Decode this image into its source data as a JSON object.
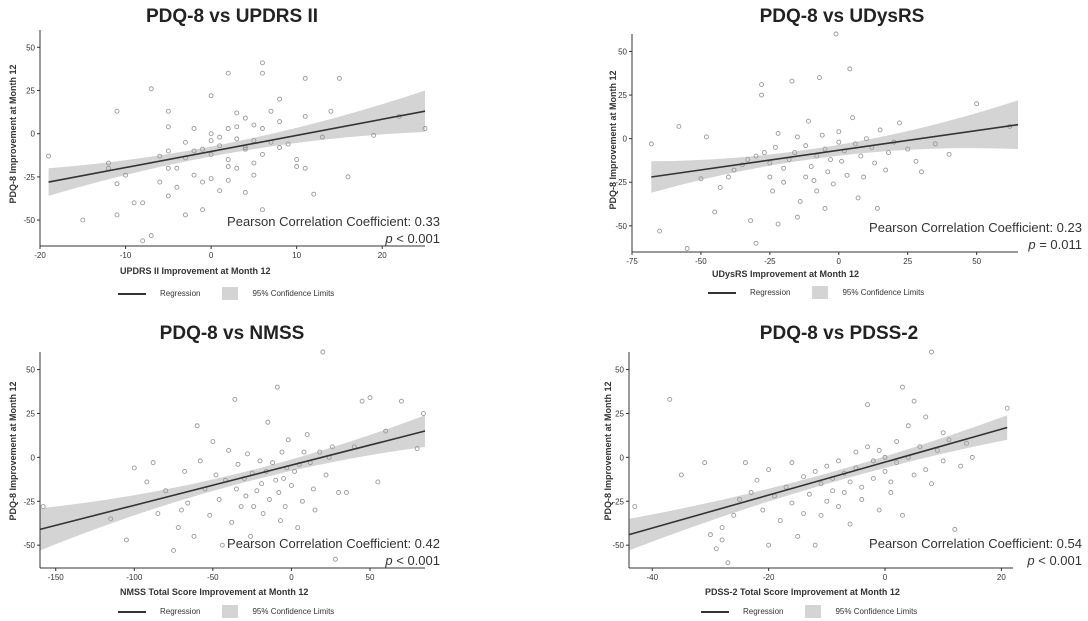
{
  "legend": {
    "regression_label": "Regression",
    "ci_label": "95% Confidence Limits"
  },
  "colors": {
    "line": "#333333",
    "band": "#d4d4d4",
    "points": "#9a9a9a"
  },
  "chart_data": [
    {
      "type": "scatter",
      "title": "PDQ-8 vs UPDRS II",
      "xlabel": "UPDRS II Improvement at Month 12",
      "ylabel": "PDQ-8 Improvement at Month 12",
      "xlim": [
        -20,
        25
      ],
      "ylim": [
        -65,
        60
      ],
      "xticks": [
        -20,
        -10,
        0,
        10,
        20
      ],
      "yticks": [
        -50,
        -25,
        0,
        25,
        50
      ],
      "regression": {
        "x0": -19,
        "y0": -28,
        "x1": 25,
        "y1": 13
      },
      "band_halfwidth": {
        "left": 8,
        "center": 3,
        "right": 12
      },
      "correlation_text": "Pearson Correlation Coefficient: 0.33",
      "p_label": "p",
      "p_text": "< 0.001",
      "points": [
        [
          -19,
          -13
        ],
        [
          -15,
          -50
        ],
        [
          -12,
          -20
        ],
        [
          -12,
          -17
        ],
        [
          -11,
          -29
        ],
        [
          -11,
          -47
        ],
        [
          -11,
          13
        ],
        [
          -10,
          -24
        ],
        [
          -9,
          -40
        ],
        [
          -8,
          -40
        ],
        [
          -8,
          -62
        ],
        [
          -7,
          -59
        ],
        [
          -7,
          26
        ],
        [
          -6,
          -28
        ],
        [
          -6,
          -13
        ],
        [
          -5,
          13
        ],
        [
          -5,
          4
        ],
        [
          -5,
          -10
        ],
        [
          -5,
          -20
        ],
        [
          -5,
          -36
        ],
        [
          -4,
          -20
        ],
        [
          -4,
          -31
        ],
        [
          -3,
          -47
        ],
        [
          -3,
          -14
        ],
        [
          -3,
          -5
        ],
        [
          -2,
          3
        ],
        [
          -2,
          -10
        ],
        [
          -2,
          -24
        ],
        [
          -1,
          -9
        ],
        [
          -1,
          -28
        ],
        [
          -1,
          -44
        ],
        [
          0,
          22
        ],
        [
          0,
          0
        ],
        [
          0,
          -4
        ],
        [
          0,
          -12
        ],
        [
          0,
          -26
        ],
        [
          1,
          -33
        ],
        [
          1,
          -7
        ],
        [
          1,
          -2
        ],
        [
          2,
          35
        ],
        [
          2,
          3
        ],
        [
          2,
          -15
        ],
        [
          2,
          -19
        ],
        [
          2,
          -27
        ],
        [
          3,
          -20
        ],
        [
          3,
          4
        ],
        [
          3,
          -3
        ],
        [
          3,
          12
        ],
        [
          4,
          -9
        ],
        [
          4,
          9
        ],
        [
          4,
          -34
        ],
        [
          4,
          -8
        ],
        [
          5,
          -4
        ],
        [
          5,
          -17
        ],
        [
          5,
          -24
        ],
        [
          5,
          5
        ],
        [
          6,
          35
        ],
        [
          6,
          41
        ],
        [
          6,
          3
        ],
        [
          6,
          -12
        ],
        [
          6,
          -44
        ],
        [
          7,
          -5
        ],
        [
          7,
          13
        ],
        [
          8,
          -8
        ],
        [
          8,
          20
        ],
        [
          8,
          7
        ],
        [
          9,
          -6
        ],
        [
          10,
          -15
        ],
        [
          10,
          -19
        ],
        [
          11,
          32
        ],
        [
          11,
          10
        ],
        [
          11,
          -20
        ],
        [
          12,
          -35
        ],
        [
          13,
          -2
        ],
        [
          14,
          13
        ],
        [
          15,
          32
        ],
        [
          16,
          -25
        ],
        [
          19,
          -1
        ],
        [
          22,
          10
        ],
        [
          25,
          3
        ]
      ]
    },
    {
      "type": "scatter",
      "title": "PDQ-8 vs UDysRS",
      "xlabel": "UDysRS Improvement at Month 12",
      "ylabel": "PDQ-8 Improvement at Month 12",
      "xlim": [
        -75,
        65
      ],
      "ylim": [
        -65,
        60
      ],
      "xticks": [
        -75,
        -50,
        -25,
        0,
        25,
        50
      ],
      "yticks": [
        -50,
        -25,
        0,
        25,
        50
      ],
      "regression": {
        "x0": -68,
        "y0": -22,
        "x1": 65,
        "y1": 8
      },
      "band_halfwidth": {
        "left": 9,
        "center": 3,
        "right": 14
      },
      "correlation_text": "Pearson Correlation Coefficient: 0.23",
      "p_label": "p",
      "p_text": "= 0.011",
      "points": [
        [
          -68,
          -3
        ],
        [
          -65,
          -53
        ],
        [
          -58,
          7
        ],
        [
          -55,
          -63
        ],
        [
          -50,
          -23
        ],
        [
          -48,
          1
        ],
        [
          -45,
          -42
        ],
        [
          -43,
          -28
        ],
        [
          -40,
          -22
        ],
        [
          -38,
          -18
        ],
        [
          -35,
          -15
        ],
        [
          -33,
          -12
        ],
        [
          -32,
          -47
        ],
        [
          -30,
          -60
        ],
        [
          -30,
          -10
        ],
        [
          -28,
          31
        ],
        [
          -28,
          25
        ],
        [
          -27,
          -8
        ],
        [
          -25,
          -22
        ],
        [
          -25,
          -14
        ],
        [
          -24,
          -30
        ],
        [
          -23,
          -5
        ],
        [
          -22,
          -49
        ],
        [
          -22,
          3
        ],
        [
          -20,
          -17
        ],
        [
          -20,
          -25
        ],
        [
          -18,
          -12
        ],
        [
          -17,
          33
        ],
        [
          -16,
          -8
        ],
        [
          -15,
          -45
        ],
        [
          -15,
          1
        ],
        [
          -14,
          -36
        ],
        [
          -12,
          -22
        ],
        [
          -12,
          -4
        ],
        [
          -11,
          10
        ],
        [
          -10,
          -16
        ],
        [
          -9,
          -24
        ],
        [
          -8,
          -10
        ],
        [
          -8,
          -30
        ],
        [
          -7,
          35
        ],
        [
          -6,
          2
        ],
        [
          -5,
          -40
        ],
        [
          -5,
          -6
        ],
        [
          -4,
          -19
        ],
        [
          -3,
          -12
        ],
        [
          -2,
          -26
        ],
        [
          -1,
          60
        ],
        [
          0,
          4
        ],
        [
          0,
          -2
        ],
        [
          1,
          -13
        ],
        [
          2,
          -7
        ],
        [
          3,
          -21
        ],
        [
          4,
          40
        ],
        [
          5,
          12
        ],
        [
          6,
          -3
        ],
        [
          7,
          -34
        ],
        [
          8,
          -10
        ],
        [
          9,
          -22
        ],
        [
          10,
          0
        ],
        [
          12,
          -5
        ],
        [
          13,
          -14
        ],
        [
          14,
          -40
        ],
        [
          15,
          5
        ],
        [
          17,
          -18
        ],
        [
          18,
          -8
        ],
        [
          20,
          -2
        ],
        [
          22,
          9
        ],
        [
          25,
          -6
        ],
        [
          28,
          -13
        ],
        [
          30,
          -19
        ],
        [
          35,
          -3
        ],
        [
          40,
          -9
        ],
        [
          50,
          20
        ],
        [
          62,
          7
        ]
      ]
    },
    {
      "type": "scatter",
      "title": "PDQ-8 vs NMSS",
      "xlabel": "NMSS Total Score Improvement at Month 12",
      "ylabel": "PDQ-8 Improvement at Month 12",
      "xlim": [
        -160,
        85
      ],
      "ylim": [
        -63,
        60
      ],
      "xticks": [
        -150,
        -100,
        -50,
        0,
        50
      ],
      "yticks": [
        -50,
        -25,
        0,
        25,
        50
      ],
      "regression": {
        "x0": -160,
        "y0": -41,
        "x1": 85,
        "y1": 15
      },
      "band_halfwidth": {
        "left": 12,
        "center": 3,
        "right": 9
      },
      "correlation_text": "Pearson Correlation Coefficient: 0.42",
      "p_label": "p",
      "p_text": "< 0.001",
      "points": [
        [
          -158,
          -28
        ],
        [
          -115,
          -35
        ],
        [
          -105,
          -47
        ],
        [
          -100,
          -6
        ],
        [
          -92,
          -14
        ],
        [
          -88,
          -3
        ],
        [
          -85,
          -32
        ],
        [
          -80,
          -19
        ],
        [
          -75,
          -53
        ],
        [
          -72,
          -40
        ],
        [
          -70,
          -30
        ],
        [
          -68,
          -8
        ],
        [
          -66,
          -26
        ],
        [
          -62,
          -45
        ],
        [
          -60,
          18
        ],
        [
          -58,
          -2
        ],
        [
          -55,
          -18
        ],
        [
          -52,
          -33
        ],
        [
          -50,
          9
        ],
        [
          -48,
          -10
        ],
        [
          -46,
          -24
        ],
        [
          -44,
          -50
        ],
        [
          -42,
          -13
        ],
        [
          -40,
          4
        ],
        [
          -38,
          -37
        ],
        [
          -36,
          33
        ],
        [
          -35,
          -18
        ],
        [
          -34,
          -4
        ],
        [
          -32,
          -28
        ],
        [
          -30,
          -12
        ],
        [
          -29,
          -22
        ],
        [
          -28,
          2
        ],
        [
          -26,
          -45
        ],
        [
          -25,
          -9
        ],
        [
          -24,
          -28
        ],
        [
          -22,
          -19
        ],
        [
          -20,
          -2
        ],
        [
          -19,
          -15
        ],
        [
          -18,
          -32
        ],
        [
          -16,
          -8
        ],
        [
          -15,
          20
        ],
        [
          -14,
          -24
        ],
        [
          -12,
          -3
        ],
        [
          -10,
          -13
        ],
        [
          -9,
          40
        ],
        [
          -8,
          -20
        ],
        [
          -7,
          -36
        ],
        [
          -6,
          3
        ],
        [
          -5,
          -12
        ],
        [
          -4,
          -28
        ],
        [
          -3,
          -6
        ],
        [
          -2,
          10
        ],
        [
          0,
          -16
        ],
        [
          2,
          -8
        ],
        [
          4,
          -40
        ],
        [
          5,
          -4
        ],
        [
          7,
          -25
        ],
        [
          8,
          3
        ],
        [
          10,
          13
        ],
        [
          12,
          -3
        ],
        [
          14,
          -18
        ],
        [
          15,
          -30
        ],
        [
          18,
          3
        ],
        [
          20,
          60
        ],
        [
          22,
          -10
        ],
        [
          24,
          0
        ],
        [
          26,
          6
        ],
        [
          28,
          -58
        ],
        [
          30,
          -20
        ],
        [
          35,
          -20
        ],
        [
          40,
          6
        ],
        [
          45,
          32
        ],
        [
          50,
          34
        ],
        [
          55,
          -14
        ],
        [
          60,
          15
        ],
        [
          70,
          32
        ],
        [
          80,
          5
        ],
        [
          84,
          25
        ]
      ]
    },
    {
      "type": "scatter",
      "title": "PDQ-8 vs PDSS-2",
      "xlabel": "PDSS-2 Total Score Improvement at Month 12",
      "ylabel": "PDQ-8 Improvement at Month 12",
      "xlim": [
        -44,
        22
      ],
      "ylim": [
        -63,
        60
      ],
      "xticks": [
        -40,
        -20,
        0,
        20
      ],
      "yticks": [
        -50,
        -25,
        0,
        25,
        50
      ],
      "regression": {
        "x0": -44,
        "y0": -44,
        "x1": 21,
        "y1": 17
      },
      "band_halfwidth": {
        "left": 9,
        "center": 3,
        "right": 7
      },
      "correlation_text": "Pearson Correlation Coefficient: 0.54",
      "p_label": "p",
      "p_text": "< 0.001",
      "points": [
        [
          -43,
          -28
        ],
        [
          -37,
          33
        ],
        [
          -35,
          -10
        ],
        [
          -31,
          -3
        ],
        [
          -30,
          -44
        ],
        [
          -29,
          -52
        ],
        [
          -28,
          -40
        ],
        [
          -28,
          -47
        ],
        [
          -27,
          -60
        ],
        [
          -26,
          -33
        ],
        [
          -25,
          -24
        ],
        [
          -24,
          -3
        ],
        [
          -23,
          -20
        ],
        [
          -22,
          -13
        ],
        [
          -21,
          -30
        ],
        [
          -20,
          -50
        ],
        [
          -20,
          -7
        ],
        [
          -19,
          -22
        ],
        [
          -18,
          -36
        ],
        [
          -17,
          -17
        ],
        [
          -16,
          -3
        ],
        [
          -16,
          -26
        ],
        [
          -15,
          -45
        ],
        [
          -14,
          -11
        ],
        [
          -14,
          -32
        ],
        [
          -13,
          -21
        ],
        [
          -12,
          -8
        ],
        [
          -12,
          -50
        ],
        [
          -11,
          -15
        ],
        [
          -11,
          -33
        ],
        [
          -10,
          -5
        ],
        [
          -10,
          -25
        ],
        [
          -9,
          -12
        ],
        [
          -9,
          -19
        ],
        [
          -8,
          -2
        ],
        [
          -8,
          -28
        ],
        [
          -7,
          -9
        ],
        [
          -7,
          -20
        ],
        [
          -6,
          -38
        ],
        [
          -6,
          -14
        ],
        [
          -5,
          3
        ],
        [
          -5,
          -6
        ],
        [
          -4,
          -24
        ],
        [
          -4,
          -17
        ],
        [
          -3,
          6
        ],
        [
          -3,
          30
        ],
        [
          -2,
          -2
        ],
        [
          -2,
          -12
        ],
        [
          -1,
          4
        ],
        [
          -1,
          -30
        ],
        [
          0,
          -8
        ],
        [
          0,
          0
        ],
        [
          1,
          -20
        ],
        [
          1,
          -14
        ],
        [
          2,
          9
        ],
        [
          2,
          -3
        ],
        [
          3,
          40
        ],
        [
          3,
          -33
        ],
        [
          4,
          18
        ],
        [
          4,
          0
        ],
        [
          5,
          -10
        ],
        [
          5,
          32
        ],
        [
          6,
          6
        ],
        [
          7,
          -7
        ],
        [
          7,
          23
        ],
        [
          8,
          -15
        ],
        [
          8,
          60
        ],
        [
          9,
          4
        ],
        [
          10,
          -2
        ],
        [
          10,
          14
        ],
        [
          11,
          10
        ],
        [
          12,
          -41
        ],
        [
          13,
          -5
        ],
        [
          14,
          8
        ],
        [
          15,
          0
        ],
        [
          21,
          28
        ]
      ]
    }
  ]
}
